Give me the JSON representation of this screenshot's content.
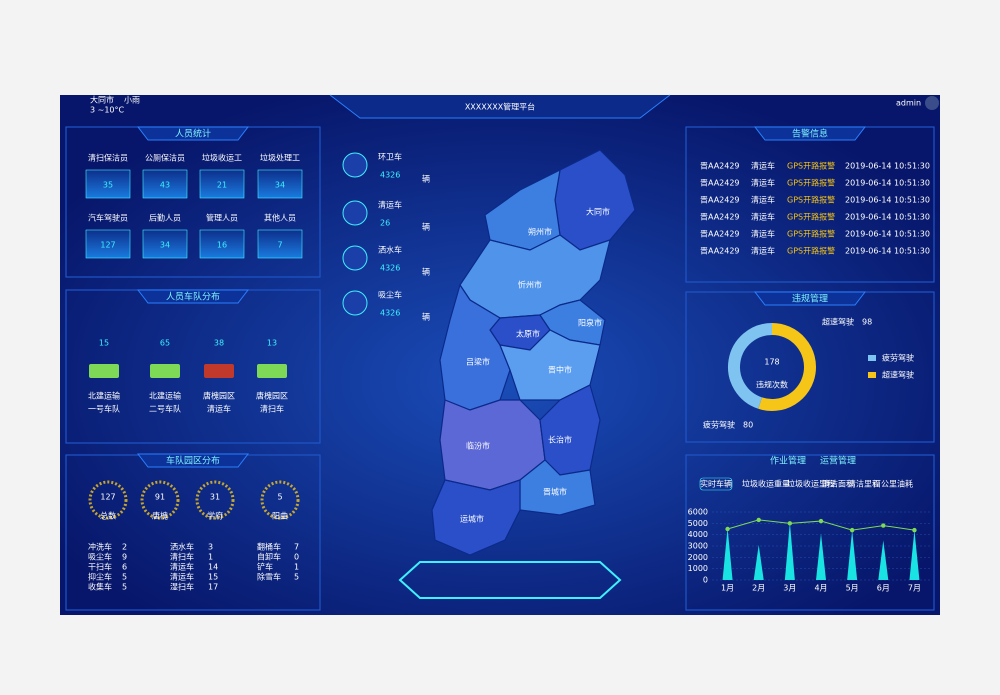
{
  "header": {
    "city": "大同市",
    "weather": "小雨",
    "temperature": "3 ~10°C",
    "title": "XXXXXXX管理平台",
    "user": "admin"
  },
  "personnel": {
    "title": "人员统计",
    "items": [
      {
        "label": "清扫保洁员",
        "value": 35
      },
      {
        "label": "公厕保洁员",
        "value": 43
      },
      {
        "label": "垃圾收运工",
        "value": 21
      },
      {
        "label": "垃圾处理工",
        "value": 34
      },
      {
        "label": "汽车驾驶员",
        "value": 127
      },
      {
        "label": "后勤人员",
        "value": 34
      },
      {
        "label": "管理人员",
        "value": 16
      },
      {
        "label": "其他人员",
        "value": 7
      }
    ]
  },
  "fleet": {
    "title": "人员车队分布",
    "teams": [
      {
        "count": 15,
        "name": [
          "北建运输",
          "一号车队"
        ]
      },
      {
        "count": 65,
        "name": [
          "北建运输",
          "二号车队"
        ]
      },
      {
        "count": 38,
        "name": [
          "唐槐园区",
          "清运车"
        ]
      },
      {
        "count": 13,
        "name": [
          "唐槐园区",
          "清扫车"
        ]
      }
    ]
  },
  "park": {
    "title": "车队园区分布",
    "gauges": [
      {
        "value": 127,
        "label": "总数"
      },
      {
        "value": 91,
        "label": "唐槐"
      },
      {
        "value": 31,
        "label": "学府"
      },
      {
        "value": 5,
        "label": "阳曲"
      }
    ],
    "vehicles": [
      [
        {
          "name": "冲洗车",
          "count": 2
        },
        {
          "name": "吸尘车",
          "count": 9
        },
        {
          "name": "干扫车",
          "count": 6
        },
        {
          "name": "抑尘车",
          "count": 5
        },
        {
          "name": "收集车",
          "count": 5
        }
      ],
      [
        {
          "name": "洒水车",
          "count": 3
        },
        {
          "name": "清扫车",
          "count": 1
        },
        {
          "name": "清运车",
          "count": 14
        },
        {
          "name": "清运车",
          "count": 15
        },
        {
          "name": "湿扫车",
          "count": 17
        }
      ],
      [
        {
          "name": "翻桶车",
          "count": 7
        },
        {
          "name": "自卸车",
          "count": 0
        },
        {
          "name": "铲车",
          "count": 1
        },
        {
          "name": "除雪车",
          "count": 5
        }
      ]
    ]
  },
  "vehicles": [
    {
      "name": "环卫车",
      "count": 4326,
      "unit": "辆"
    },
    {
      "name": "清运车",
      "count": 26,
      "unit": "辆"
    },
    {
      "name": "洒水车",
      "count": 4326,
      "unit": "辆"
    },
    {
      "name": "吸尘车",
      "count": 4326,
      "unit": "辆"
    }
  ],
  "map": {
    "regions": [
      "大同市",
      "朔州市",
      "忻州市",
      "太原市",
      "阳泉市",
      "吕梁市",
      "晋中市",
      "临汾市",
      "长治市",
      "晋城市",
      "运城市"
    ]
  },
  "alerts": {
    "title": "告警信息",
    "rows": [
      [
        "晋AA2429",
        "清运车",
        "GPS开路报警",
        "2019-06-14 10:51:30"
      ],
      [
        "晋AA2429",
        "清运车",
        "GPS开路报警",
        "2019-06-14 10:51:30"
      ],
      [
        "晋AA2429",
        "清运车",
        "GPS开路报警",
        "2019-06-14 10:51:30"
      ],
      [
        "晋AA2429",
        "清运车",
        "GPS开路报警",
        "2019-06-14 10:51:30"
      ],
      [
        "晋AA2429",
        "清运车",
        "GPS开路报警",
        "2019-06-14 10:51:30"
      ],
      [
        "晋AA2429",
        "清运车",
        "GPS开路报警",
        "2019-06-14 10:51:30"
      ]
    ]
  },
  "chart_data": [
    {
      "type": "pie",
      "title": "违规管理",
      "center_value": 178,
      "center_label": "违规次数",
      "categories": [
        "超速驾驶",
        "疲劳驾驶"
      ],
      "values": [
        98,
        80
      ],
      "colors": [
        "#f5c518",
        "#7fc4f0"
      ]
    },
    {
      "type": "bar",
      "titles": [
        "作业管理",
        "运营管理"
      ],
      "tabs": [
        "实时车辆",
        "垃圾收运重量",
        "垃圾收运里程",
        "清洁面积",
        "清洁里程",
        "百公里油耗"
      ],
      "categories": [
        "1月",
        "2月",
        "3月",
        "4月",
        "5月",
        "6月",
        "7月"
      ],
      "series": [
        {
          "color": "#19e3e3",
          "values": [
            4600,
            3100,
            5100,
            4100,
            4400,
            3500,
            4400
          ]
        },
        {
          "type": "line",
          "color": "#7ed957",
          "values": [
            4500,
            5300,
            5000,
            5200,
            4400,
            4800,
            4400
          ]
        }
      ],
      "ylim": [
        0,
        6000
      ],
      "yticks": [
        0,
        1000,
        2000,
        3000,
        4000,
        5000,
        6000
      ],
      "grid": true
    }
  ]
}
